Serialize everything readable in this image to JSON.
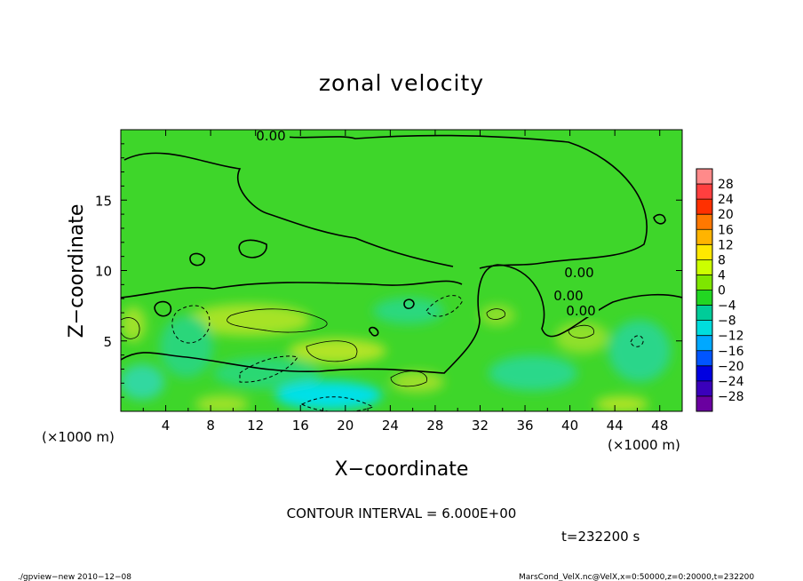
{
  "chart_data": {
    "type": "heatmap",
    "title": "zonal velocity",
    "xlabel": "X−coordinate",
    "ylabel": "Z−coordinate",
    "x_unit": "(×1000 m)",
    "z_unit": "(×1000 m)",
    "xlim": [
      0,
      50
    ],
    "ylim": [
      0,
      20
    ],
    "x_ticks": [
      "4",
      "8",
      "12",
      "16",
      "20",
      "24",
      "28",
      "32",
      "36",
      "40",
      "44",
      "48"
    ],
    "y_ticks": [
      "5",
      "10",
      "15"
    ],
    "colorbar": {
      "levels": [
        "28",
        "24",
        "20",
        "16",
        "12",
        "8",
        "4",
        "0",
        "−4",
        "−8",
        "−12",
        "−16",
        "−20",
        "−24",
        "−28"
      ],
      "colors": [
        "#ff8a8a",
        "#ff3f3f",
        "#ff3000",
        "#ff7800",
        "#ffb400",
        "#ffe800",
        "#ccff00",
        "#7ee600",
        "#22d622",
        "#00cc99",
        "#00dddd",
        "#00a8ff",
        "#0055ff",
        "#0000e0",
        "#3a00bb",
        "#6a00a0"
      ]
    },
    "contour_labels": [
      "0.00",
      "0.00",
      "0.00",
      "0.00"
    ],
    "contour_interval_text": "CONTOUR INTERVAL = 6.000E+00",
    "time_text": "t=232200 s"
  },
  "footer": {
    "left": "./gpview−new   2010−12−08",
    "right": "MarsCond_VelX.nc@VelX,x=0:50000,z=0:20000,t=232200"
  }
}
